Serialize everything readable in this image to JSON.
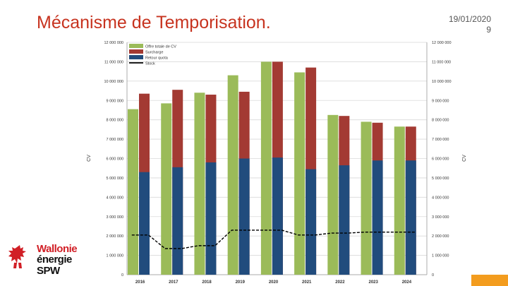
{
  "slide": {
    "title": "Mécanisme de Temporisation.",
    "date": "19/01/2020",
    "page_number": "9"
  },
  "logo": {
    "line1": "Wallonie",
    "line2": "énergie",
    "line3": "SPW",
    "colors": {
      "red": "#d11f26",
      "black": "#111111"
    },
    "icon": "rooster-icon"
  },
  "accent_color": "#f39c1e",
  "chart_data": {
    "type": "bar",
    "categories": [
      "2016",
      "2017",
      "2018",
      "2019",
      "2020",
      "2021",
      "2022",
      "2023",
      "2024"
    ],
    "series": [
      {
        "name": "Offre totale de CV",
        "color": "#9bbb59",
        "values": [
          8550000,
          8850000,
          9400000,
          10300000,
          11000000,
          10450000,
          8250000,
          7900000,
          7650000
        ]
      },
      {
        "name": "Surcharge",
        "color": "#a33a33",
        "values": [
          9350000,
          9550000,
          9300000,
          9450000,
          11000000,
          10700000,
          8200000,
          7850000,
          7650000
        ]
      },
      {
        "name": "Retour quota",
        "color": "#214c7d",
        "values": [
          5300000,
          5550000,
          5800000,
          6000000,
          6050000,
          5450000,
          5650000,
          5900000,
          5900000
        ]
      },
      {
        "name": "Stock",
        "color": "#000000",
        "values": [
          2050000,
          1350000,
          1500000,
          2300000,
          2300000,
          2050000,
          2150000,
          2200000,
          2200000
        ]
      }
    ],
    "ylim": [
      0,
      12000000
    ],
    "y_ticks": [
      "0",
      "1 000 000",
      "2 000 000",
      "3 000 000",
      "4 000 000",
      "5 000 000",
      "6 000 000",
      "7 000 000",
      "8 000 000",
      "9 000 000",
      "10 000 000",
      "11 000 000",
      "12 000 000"
    ],
    "ylabel_left": "CV",
    "ylabel_right": "CV",
    "legend_position": "top-left",
    "grid": true
  }
}
